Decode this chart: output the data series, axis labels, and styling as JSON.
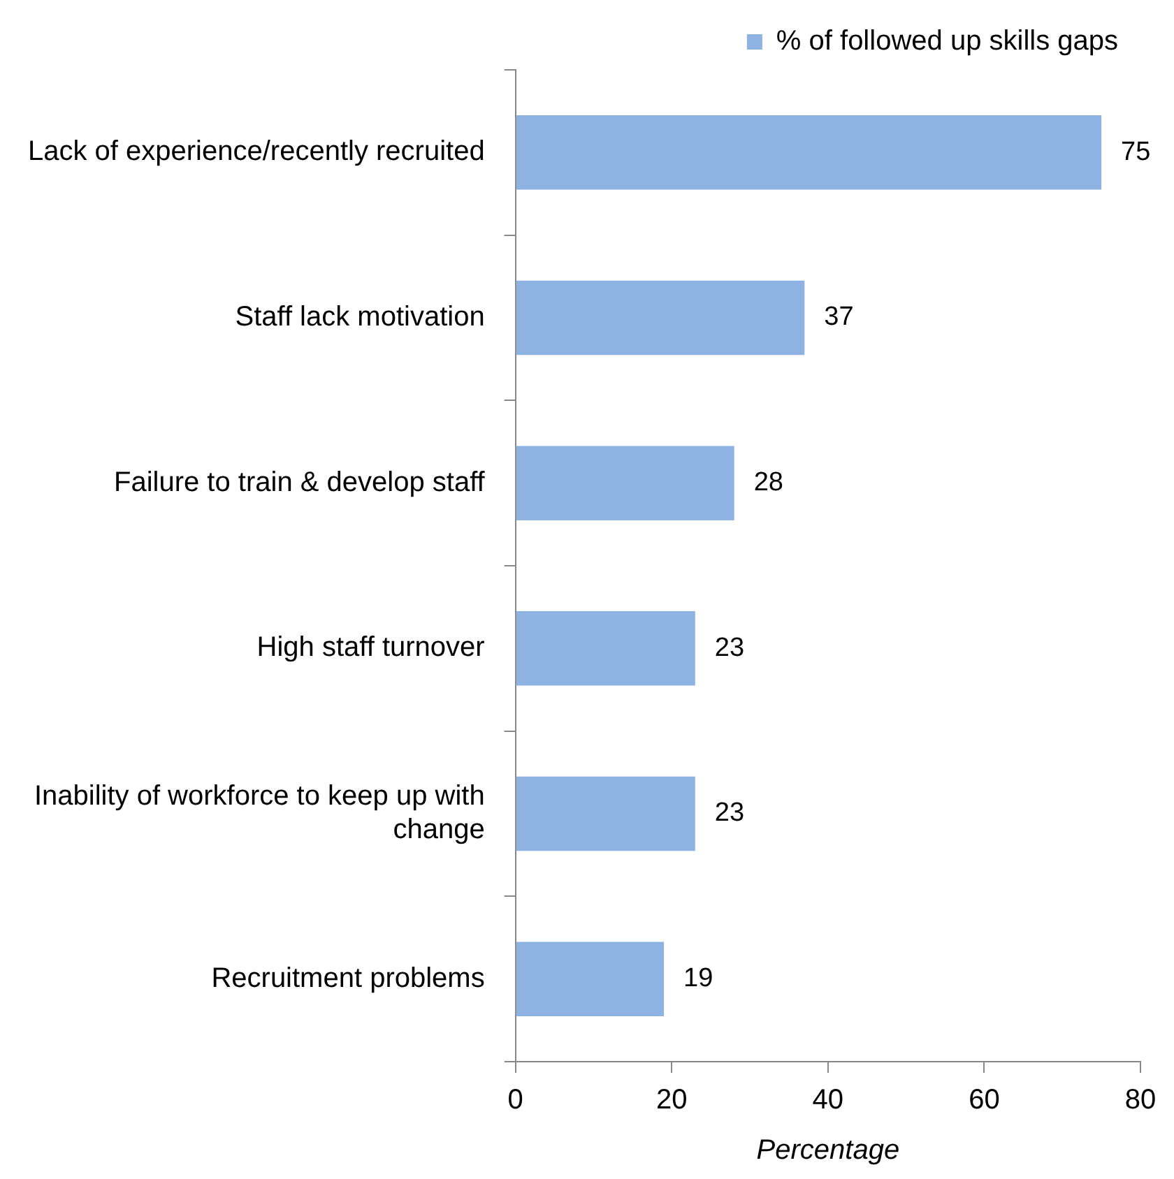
{
  "chart_data": {
    "type": "bar",
    "orientation": "horizontal",
    "xlabel": "Percentage",
    "categories": [
      "Lack of experience/recently recruited",
      "Staff lack motivation",
      "Failure to train & develop staff",
      "High staff turnover",
      "Inability of workforce to keep up with change",
      "Recruitment problems"
    ],
    "series": [
      {
        "name": "% of followed up skills gaps",
        "color": "#8eb3e3",
        "values": [
          75,
          37,
          28,
          23,
          23,
          19
        ]
      }
    ],
    "xlim": [
      0,
      80
    ],
    "xticks": [
      0,
      20,
      40,
      60,
      80
    ],
    "grid": false,
    "legend": "top right",
    "data_labels": true
  }
}
